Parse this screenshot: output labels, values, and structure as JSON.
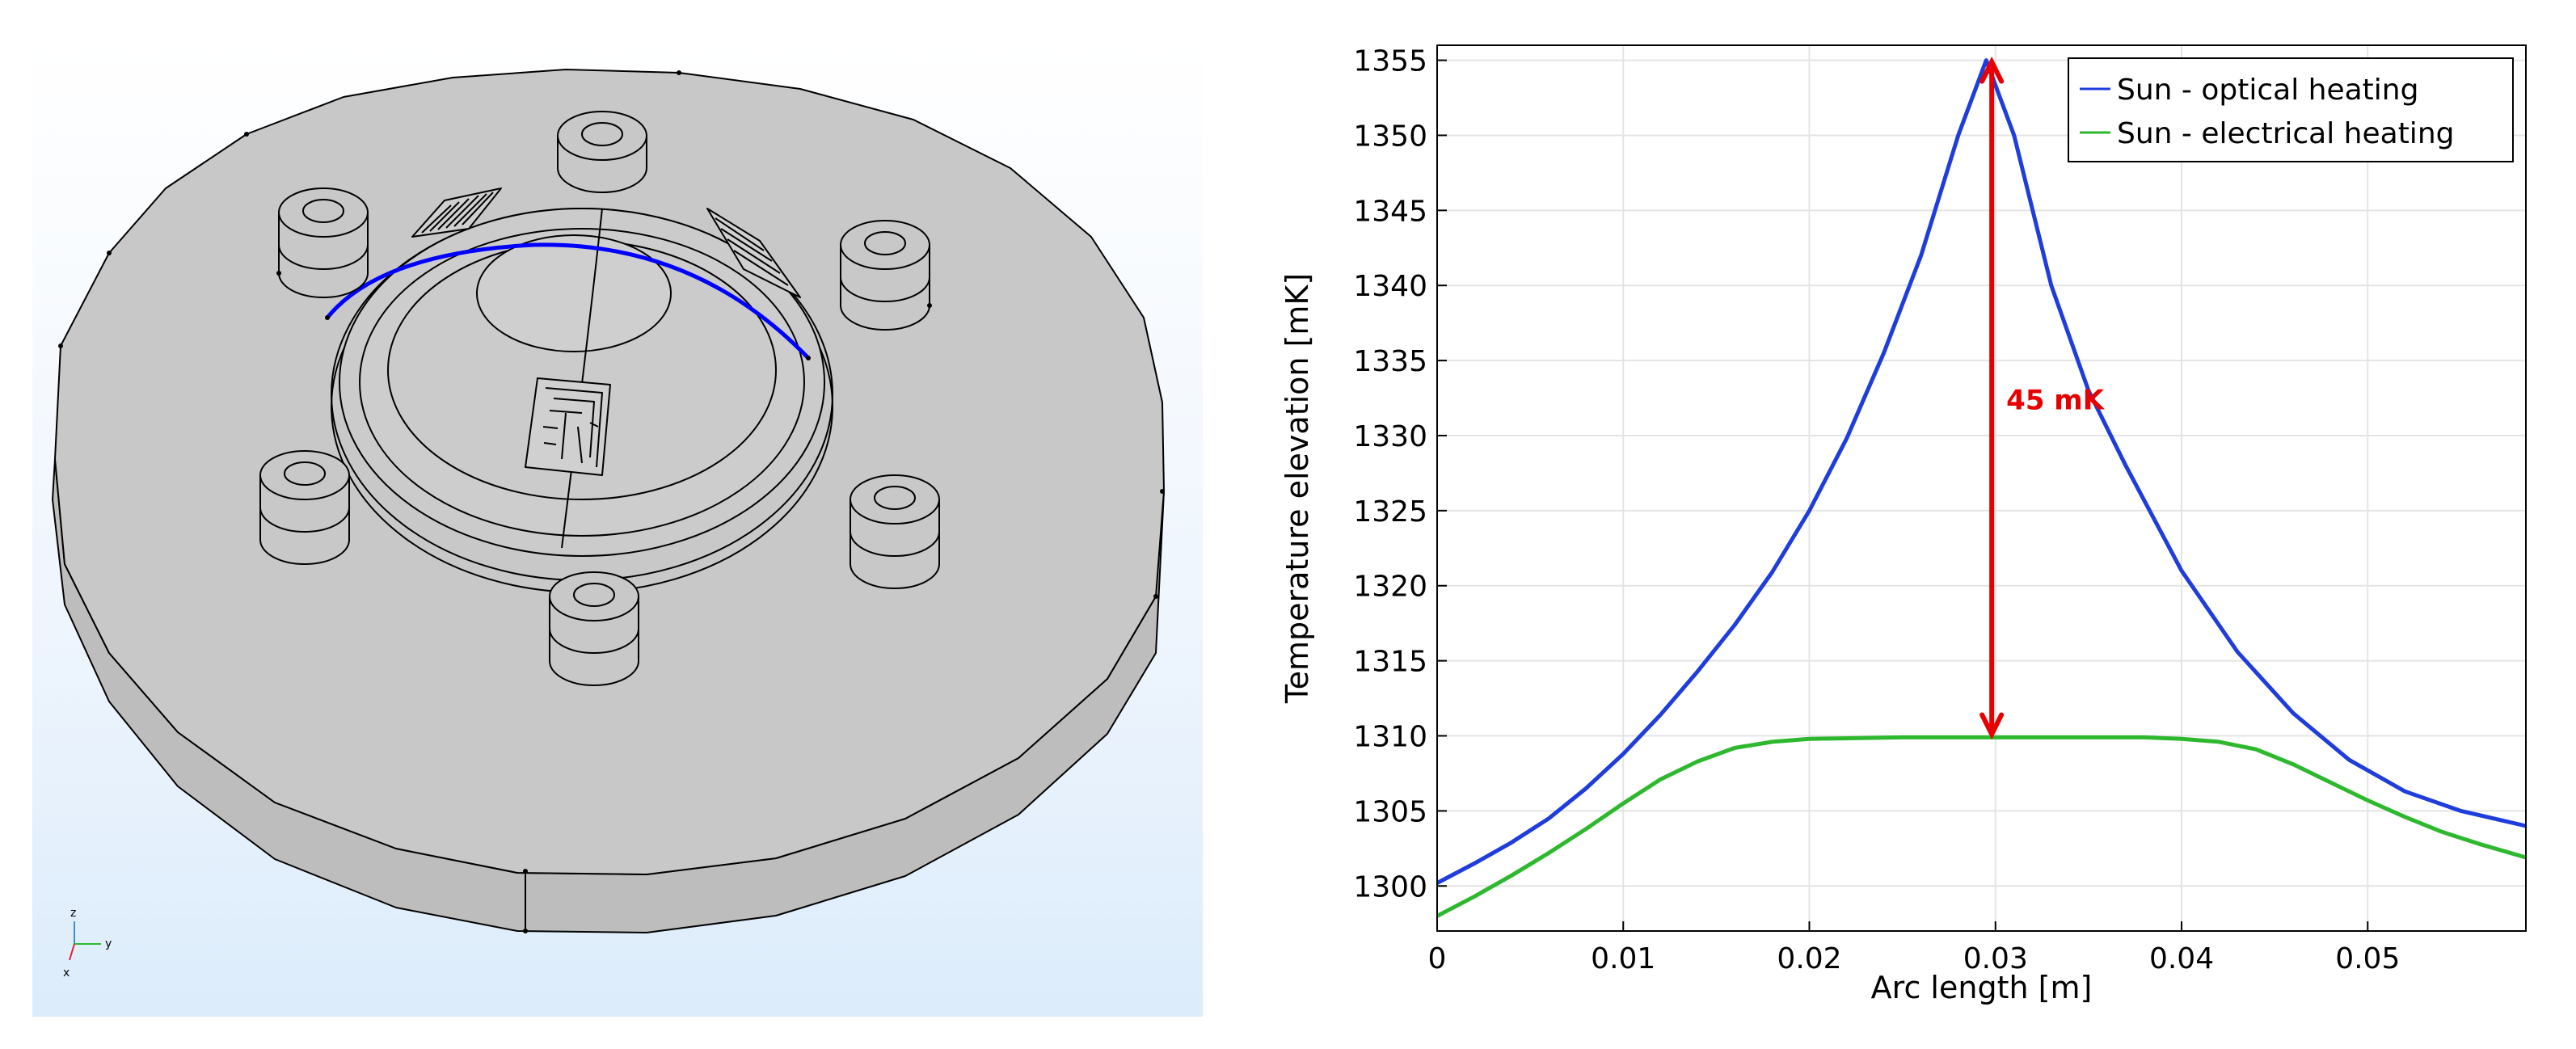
{
  "viewport": {
    "triad": {
      "z": "z",
      "y": "y",
      "x": "x"
    },
    "colors": {
      "background_top": "#ffffff",
      "background_bottom": "#dcecfb",
      "body": "#c8c8c8",
      "edges": "#000000",
      "highlight_path": "#0000ff"
    },
    "icons": [
      "axis-triad-icon"
    ]
  },
  "chart_data": {
    "type": "line",
    "title": "",
    "xlabel": "Arc length [m]",
    "ylabel": "Temperature elevation [mK]",
    "xlim": [
      0,
      0.0585
    ],
    "ylim": [
      1297,
      1356
    ],
    "xticks": [
      0,
      0.01,
      0.02,
      0.03,
      0.04,
      0.05
    ],
    "xtick_labels": [
      "0",
      "0.01",
      "0.02",
      "0.03",
      "0.04",
      "0.05"
    ],
    "yticks": [
      1300,
      1305,
      1310,
      1315,
      1320,
      1325,
      1330,
      1335,
      1340,
      1345,
      1350,
      1355
    ],
    "grid": true,
    "legend_position": "top-right",
    "series": [
      {
        "name": "Sun - optical heating",
        "color": "#1f3ddc",
        "x": [
          0,
          0.002,
          0.004,
          0.006,
          0.008,
          0.01,
          0.012,
          0.014,
          0.016,
          0.018,
          0.02,
          0.022,
          0.024,
          0.026,
          0.028,
          0.0295,
          0.031,
          0.033,
          0.035,
          0.037,
          0.04,
          0.043,
          0.046,
          0.049,
          0.052,
          0.055,
          0.0585
        ],
        "y": [
          1300.2,
          1301.5,
          1302.9,
          1304.5,
          1306.5,
          1308.8,
          1311.4,
          1314.3,
          1317.4,
          1320.9,
          1325.0,
          1329.8,
          1335.5,
          1342.0,
          1350.0,
          1355.0,
          1350.0,
          1340.0,
          1333.0,
          1328.0,
          1321.0,
          1315.6,
          1311.5,
          1308.4,
          1306.3,
          1305.0,
          1304.0
        ]
      },
      {
        "name": "Sun - electrical heating",
        "color": "#2eb82e",
        "x": [
          0,
          0.002,
          0.004,
          0.006,
          0.008,
          0.01,
          0.012,
          0.014,
          0.016,
          0.018,
          0.02,
          0.025,
          0.03,
          0.035,
          0.038,
          0.04,
          0.042,
          0.044,
          0.046,
          0.048,
          0.05,
          0.052,
          0.054,
          0.056,
          0.0585
        ],
        "y": [
          1298.0,
          1299.3,
          1300.7,
          1302.2,
          1303.8,
          1305.5,
          1307.1,
          1308.3,
          1309.2,
          1309.6,
          1309.8,
          1309.9,
          1309.9,
          1309.9,
          1309.9,
          1309.8,
          1309.6,
          1309.1,
          1308.1,
          1306.9,
          1305.7,
          1304.6,
          1303.6,
          1302.8,
          1301.9
        ]
      }
    ],
    "annotations": [
      {
        "text": "45 mK",
        "color": "#e60000",
        "arrow_x": 0.0298,
        "arrow_from": 1310,
        "arrow_to": 1355
      }
    ]
  }
}
